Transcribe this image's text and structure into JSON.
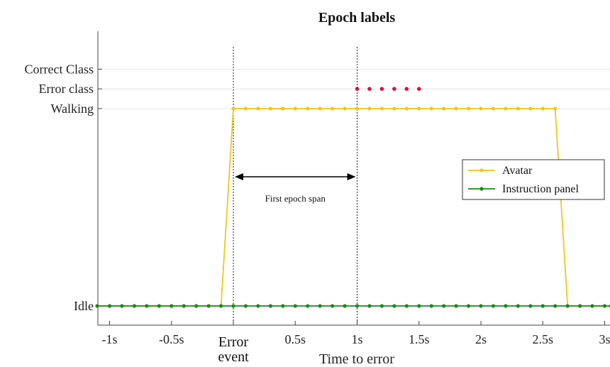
{
  "chart_data": {
    "type": "line",
    "title": "Epoch labels",
    "xlabel": "Time to error",
    "ylabel": "",
    "xlim": [
      -1.1,
      3.05
    ],
    "ylim": [
      0,
      1.18
    ],
    "grid": "horizontal",
    "x_ticks": [
      {
        "value": -1,
        "label": "-1s"
      },
      {
        "value": -0.5,
        "label": "-0.5s"
      },
      {
        "value": 0,
        "label": "Error event"
      },
      {
        "value": 0.5,
        "label": "0.5s"
      },
      {
        "value": 1,
        "label": "1s"
      },
      {
        "value": 1.5,
        "label": "1.5s"
      },
      {
        "value": 2,
        "label": "2s"
      },
      {
        "value": 2.5,
        "label": "2.5s"
      },
      {
        "value": 3,
        "label": "3s"
      }
    ],
    "x_event_label_lines": [
      "Error",
      "event"
    ],
    "y_ticks": [
      {
        "value": 0,
        "label": "Idle"
      },
      {
        "value": 1,
        "label": "Walking"
      },
      {
        "value": 1.1,
        "label": "Error class"
      },
      {
        "value": 1.2,
        "label": "Correct Class"
      }
    ],
    "vertical_markers": [
      0,
      1
    ],
    "annotation": {
      "text": "First epoch span",
      "from": 0,
      "to": 1
    },
    "legend_position": "right",
    "series": [
      {
        "name": "Avatar",
        "color": "#f5c518",
        "points": [
          [
            -1.1,
            0
          ],
          [
            -1.0,
            0
          ],
          [
            -0.9,
            0
          ],
          [
            -0.8,
            0
          ],
          [
            -0.7,
            0
          ],
          [
            -0.6,
            0
          ],
          [
            -0.5,
            0
          ],
          [
            -0.4,
            0
          ],
          [
            -0.3,
            0
          ],
          [
            -0.2,
            0
          ],
          [
            -0.1,
            0
          ],
          [
            0.0,
            1
          ],
          [
            0.1,
            1
          ],
          [
            0.2,
            1
          ],
          [
            0.3,
            1
          ],
          [
            0.4,
            1
          ],
          [
            0.5,
            1
          ],
          [
            0.6,
            1
          ],
          [
            0.7,
            1
          ],
          [
            0.8,
            1
          ],
          [
            0.9,
            1
          ],
          [
            1.0,
            1
          ],
          [
            1.1,
            1
          ],
          [
            1.2,
            1
          ],
          [
            1.3,
            1
          ],
          [
            1.4,
            1
          ],
          [
            1.5,
            1
          ],
          [
            1.6,
            1
          ],
          [
            1.7,
            1
          ],
          [
            1.8,
            1
          ],
          [
            1.9,
            1
          ],
          [
            2.0,
            1
          ],
          [
            2.1,
            1
          ],
          [
            2.2,
            1
          ],
          [
            2.3,
            1
          ],
          [
            2.4,
            1
          ],
          [
            2.5,
            1
          ],
          [
            2.6,
            1
          ],
          [
            2.7,
            0
          ],
          [
            2.8,
            0
          ],
          [
            2.9,
            0
          ],
          [
            3.0,
            0
          ]
        ]
      },
      {
        "name": "Instruction panel",
        "color": "#1a8a1a",
        "points": [
          [
            -1.1,
            0
          ],
          [
            -1.0,
            0
          ],
          [
            -0.9,
            0
          ],
          [
            -0.8,
            0
          ],
          [
            -0.7,
            0
          ],
          [
            -0.6,
            0
          ],
          [
            -0.5,
            0
          ],
          [
            -0.4,
            0
          ],
          [
            -0.3,
            0
          ],
          [
            -0.2,
            0
          ],
          [
            -0.1,
            0
          ],
          [
            0.0,
            0
          ],
          [
            0.1,
            0
          ],
          [
            0.2,
            0
          ],
          [
            0.3,
            0
          ],
          [
            0.4,
            0
          ],
          [
            0.5,
            0
          ],
          [
            0.6,
            0
          ],
          [
            0.7,
            0
          ],
          [
            0.8,
            0
          ],
          [
            0.9,
            0
          ],
          [
            1.0,
            0
          ],
          [
            1.1,
            0
          ],
          [
            1.2,
            0
          ],
          [
            1.3,
            0
          ],
          [
            1.4,
            0
          ],
          [
            1.5,
            0
          ],
          [
            1.6,
            0
          ],
          [
            1.7,
            0
          ],
          [
            1.8,
            0
          ],
          [
            1.9,
            0
          ],
          [
            2.0,
            0
          ],
          [
            2.1,
            0
          ],
          [
            2.2,
            0
          ],
          [
            2.3,
            0
          ],
          [
            2.4,
            0
          ],
          [
            2.5,
            0
          ],
          [
            2.6,
            0
          ],
          [
            2.7,
            0
          ],
          [
            2.8,
            0
          ],
          [
            2.9,
            0
          ],
          [
            3.0,
            0
          ],
          [
            3.05,
            0
          ]
        ]
      },
      {
        "color": "#e0103c",
        "markers_only": true,
        "points": [
          [
            1.0,
            1.1
          ],
          [
            1.1,
            1.1
          ],
          [
            1.2,
            1.1
          ],
          [
            1.3,
            1.1
          ],
          [
            1.4,
            1.1
          ],
          [
            1.5,
            1.1
          ]
        ]
      }
    ]
  }
}
